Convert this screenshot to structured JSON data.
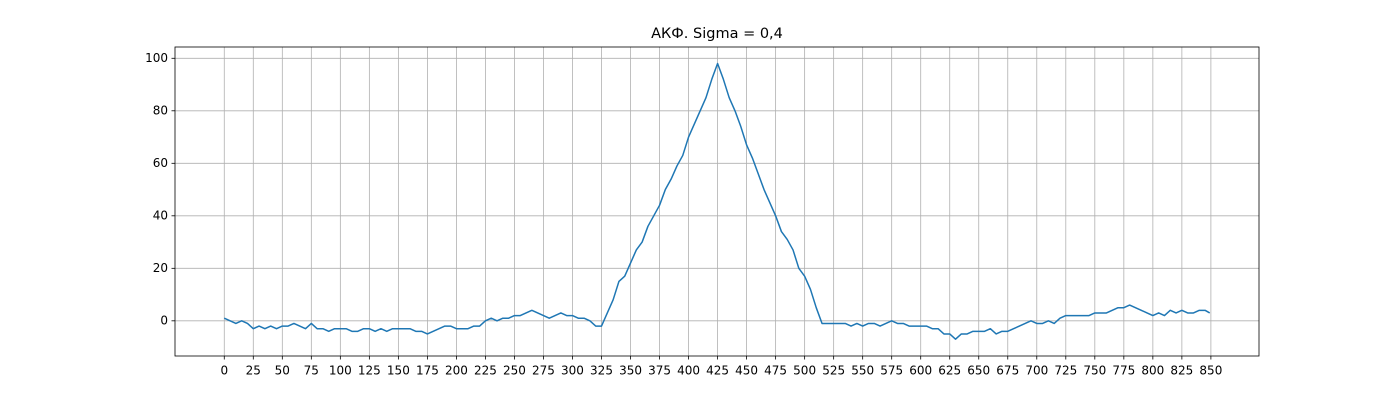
{
  "chart_data": {
    "type": "line",
    "title": "АКФ. Sigma = 0,4",
    "color": "#1f77b4",
    "grid": true,
    "xlim": [
      -42.45,
      891.45
    ],
    "ylim": [
      -13.4,
      104.3
    ],
    "xticks": [
      0,
      25,
      50,
      75,
      100,
      125,
      150,
      175,
      200,
      225,
      250,
      275,
      300,
      325,
      350,
      375,
      400,
      425,
      450,
      475,
      500,
      525,
      550,
      575,
      600,
      625,
      650,
      675,
      700,
      725,
      750,
      775,
      800,
      825,
      850
    ],
    "yticks": [
      0,
      20,
      40,
      60,
      80,
      100
    ],
    "x": [
      0,
      5,
      10,
      15,
      20,
      25,
      30,
      35,
      40,
      45,
      50,
      55,
      60,
      65,
      70,
      75,
      80,
      85,
      90,
      95,
      100,
      105,
      110,
      115,
      120,
      125,
      130,
      135,
      140,
      145,
      150,
      155,
      160,
      165,
      170,
      175,
      180,
      185,
      190,
      195,
      200,
      205,
      210,
      215,
      220,
      225,
      230,
      235,
      240,
      245,
      250,
      255,
      260,
      265,
      270,
      275,
      280,
      285,
      290,
      295,
      300,
      305,
      310,
      315,
      320,
      325,
      330,
      335,
      340,
      345,
      350,
      355,
      360,
      365,
      370,
      375,
      380,
      385,
      390,
      395,
      400,
      405,
      410,
      415,
      420,
      425,
      430,
      435,
      440,
      445,
      450,
      455,
      460,
      465,
      470,
      475,
      480,
      485,
      490,
      495,
      500,
      505,
      510,
      515,
      520,
      525,
      530,
      535,
      540,
      545,
      550,
      555,
      560,
      565,
      570,
      575,
      580,
      585,
      590,
      595,
      600,
      605,
      610,
      615,
      620,
      625,
      630,
      635,
      640,
      645,
      650,
      655,
      660,
      665,
      670,
      675,
      680,
      685,
      690,
      695,
      700,
      705,
      710,
      715,
      720,
      725,
      730,
      735,
      740,
      745,
      750,
      755,
      760,
      765,
      770,
      775,
      780,
      785,
      790,
      795,
      800,
      805,
      810,
      815,
      820,
      825,
      830,
      835,
      840,
      845,
      849
    ],
    "values": [
      1,
      0,
      -1,
      0,
      -1,
      -3,
      -2,
      -3,
      -2,
      -3,
      -2,
      -2,
      -1,
      -2,
      -3,
      -1,
      -3,
      -3,
      -4,
      -3,
      -3,
      -3,
      -4,
      -4,
      -3,
      -3,
      -4,
      -3,
      -4,
      -3,
      -3,
      -3,
      -3,
      -4,
      -4,
      -5,
      -4,
      -3,
      -2,
      -2,
      -3,
      -3,
      -3,
      -2,
      -2,
      0,
      1,
      0,
      1,
      1,
      2,
      2,
      3,
      4,
      3,
      2,
      1,
      2,
      3,
      2,
      2,
      1,
      1,
      0,
      -2,
      -2,
      3,
      8,
      15,
      17,
      22,
      27,
      30,
      36,
      40,
      44,
      50,
      54,
      59,
      63,
      70,
      75,
      80,
      85,
      92,
      98,
      92,
      85,
      80,
      74,
      67,
      62,
      56,
      50,
      45,
      40,
      34,
      31,
      27,
      20,
      17,
      12,
      5,
      -1,
      -1,
      -1,
      -1,
      -1,
      -2,
      -1,
      -2,
      -1,
      -1,
      -2,
      -1,
      0,
      -1,
      -1,
      -2,
      -2,
      -2,
      -2,
      -3,
      -3,
      -5,
      -5,
      -7,
      -5,
      -5,
      -4,
      -4,
      -4,
      -3,
      -5,
      -4,
      -4,
      -3,
      -2,
      -1,
      0,
      -1,
      -1,
      0,
      -1,
      1,
      2,
      2,
      2,
      2,
      2,
      3,
      3,
      3,
      4,
      5,
      5,
      6,
      5,
      4,
      3,
      2,
      3,
      2,
      4,
      3,
      4,
      3,
      3,
      4,
      4,
      3
    ]
  }
}
